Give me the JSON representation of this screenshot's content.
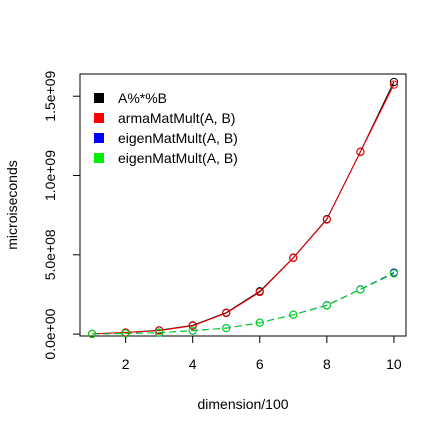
{
  "chart_data": {
    "type": "line",
    "xlabel": "dimension/100",
    "ylabel": "microiseconds",
    "xlim": [
      0.64,
      10.36
    ],
    "ylim": [
      -12000000,
      1640000000
    ],
    "x_ticks": [
      2,
      4,
      6,
      8,
      10
    ],
    "y_ticks": [
      0,
      500000000,
      1000000000,
      1500000000
    ],
    "y_tick_labels": [
      "0.0e+00",
      "5.0e+08",
      "1.0e+09",
      "1.5e+09"
    ],
    "grid": false,
    "legend_position": "top-left",
    "x": [
      1,
      2,
      3,
      4,
      5,
      6,
      7,
      8,
      9,
      10
    ],
    "series": [
      {
        "name": "A%*%B",
        "color": "#000000",
        "values": [
          1500000,
          10000000,
          24000000,
          55000000,
          135000000,
          270000000,
          482000000,
          725000000,
          1150000000,
          1590000000
        ]
      },
      {
        "name": "armaMatMult(A, B)",
        "color": "#ff0000",
        "values": [
          1500000,
          10000000,
          22000000,
          52000000,
          132000000,
          265000000,
          480000000,
          722000000,
          1148000000,
          1573000000
        ]
      },
      {
        "name": "eigenMatMult(A, B)",
        "color": "#0000ff",
        "values": [
          500000,
          4000000,
          9000000,
          22000000,
          38000000,
          72000000,
          122000000,
          182000000,
          282000000,
          388000000
        ]
      },
      {
        "name": "eigenMatMult(A, B)",
        "color": "#00ee00",
        "values": [
          500000,
          4000000,
          9000000,
          21000000,
          37000000,
          71000000,
          121000000,
          180000000,
          280000000,
          382000000
        ]
      }
    ]
  }
}
